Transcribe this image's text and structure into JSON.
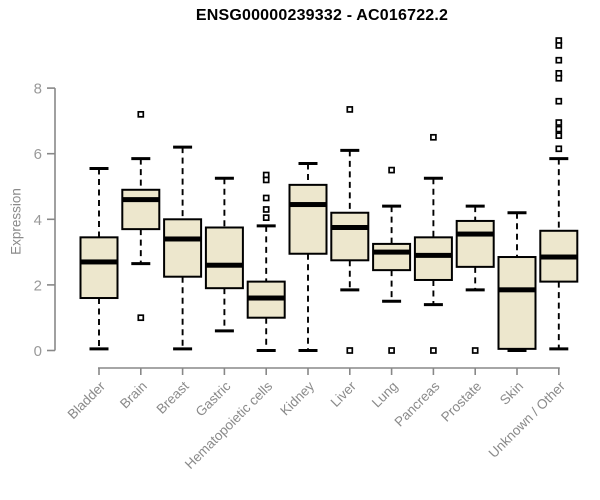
{
  "chart_data": {
    "type": "boxplot",
    "title": "ENSG00000239332 - AC016722.2",
    "xlabel": "",
    "ylabel": "Expression",
    "ylim": [
      0,
      9.7
    ],
    "yticks": [
      0,
      2,
      4,
      6,
      8
    ],
    "grid": false,
    "legend": false,
    "categories": [
      "Bladder",
      "Brain",
      "Breast",
      "Gastric",
      "Hematopoietic cells",
      "Kidney",
      "Liver",
      "Lung",
      "Pancreas",
      "Prostate",
      "Skin",
      "Unknown / Other"
    ],
    "series": [
      {
        "category": "Bladder",
        "whisker_low": 0.05,
        "q1": 1.6,
        "median": 2.7,
        "q3": 3.45,
        "whisker_high": 5.55,
        "outliers": []
      },
      {
        "category": "Brain",
        "whisker_low": 2.65,
        "q1": 3.7,
        "median": 4.6,
        "q3": 4.9,
        "whisker_high": 5.85,
        "outliers": [
          7.2,
          1.0
        ]
      },
      {
        "category": "Breast",
        "whisker_low": 0.05,
        "q1": 2.25,
        "median": 3.4,
        "q3": 4.0,
        "whisker_high": 6.2,
        "outliers": []
      },
      {
        "category": "Gastric",
        "whisker_low": 0.6,
        "q1": 1.9,
        "median": 2.6,
        "q3": 3.75,
        "whisker_high": 5.25,
        "outliers": []
      },
      {
        "category": "Hematopoietic cells",
        "whisker_low": 0.0,
        "q1": 1.0,
        "median": 1.6,
        "q3": 2.1,
        "whisker_high": 3.8,
        "outliers": [
          5.35,
          5.2,
          4.65,
          4.3,
          4.05
        ]
      },
      {
        "category": "Kidney",
        "whisker_low": 0.0,
        "q1": 2.95,
        "median": 4.45,
        "q3": 5.05,
        "whisker_high": 5.7,
        "outliers": []
      },
      {
        "category": "Liver",
        "whisker_low": 1.85,
        "q1": 2.75,
        "median": 3.75,
        "q3": 4.2,
        "whisker_high": 6.1,
        "outliers": [
          7.35,
          0.0
        ]
      },
      {
        "category": "Lung",
        "whisker_low": 1.5,
        "q1": 2.45,
        "median": 3.0,
        "q3": 3.25,
        "whisker_high": 4.4,
        "outliers": [
          5.5,
          0.0
        ]
      },
      {
        "category": "Pancreas",
        "whisker_low": 1.4,
        "q1": 2.15,
        "median": 2.9,
        "q3": 3.45,
        "whisker_high": 5.25,
        "outliers": [
          6.5,
          0.0
        ]
      },
      {
        "category": "Prostate",
        "whisker_low": 1.85,
        "q1": 2.55,
        "median": 3.55,
        "q3": 3.95,
        "whisker_high": 4.4,
        "outliers": [
          0.0
        ]
      },
      {
        "category": "Skin",
        "whisker_low": 0.0,
        "q1": 0.05,
        "median": 1.85,
        "q3": 2.85,
        "whisker_high": 4.2,
        "outliers": []
      },
      {
        "category": "Unknown / Other",
        "whisker_low": 0.05,
        "q1": 2.1,
        "median": 2.85,
        "q3": 3.65,
        "whisker_high": 5.85,
        "outliers": [
          9.45,
          9.3,
          8.85,
          8.45,
          8.3,
          7.6,
          6.95,
          6.75,
          6.55,
          6.15
        ]
      }
    ],
    "colors": {
      "box_fill": "#EDE7CD",
      "box_border": "#000000",
      "median": "#000000",
      "whisker": "#000000",
      "outlier_fill": "#ffffff",
      "outlier_border": "#000000",
      "axis": "#888888",
      "y_tick_label": "#999999",
      "category_label": "#8a8a8a",
      "title": "#000000",
      "background": "#ffffff"
    }
  }
}
